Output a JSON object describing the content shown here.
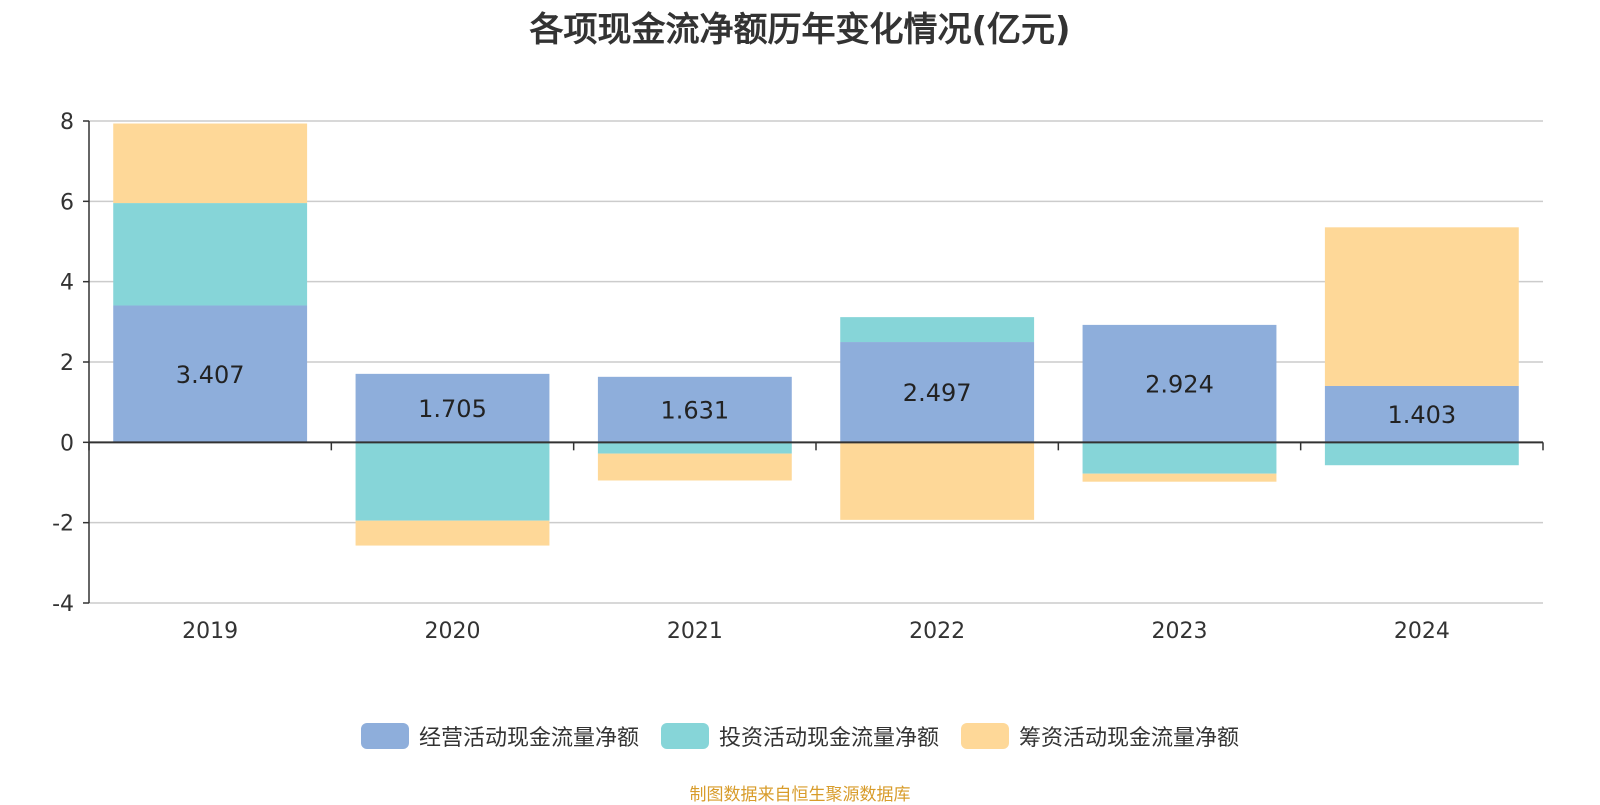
{
  "chart_data": {
    "type": "bar",
    "stacked": true,
    "title": "各项现金流净额历年变化情况(亿元)",
    "categories": [
      "2019",
      "2020",
      "2021",
      "2022",
      "2023",
      "2024"
    ],
    "ylim": [
      -4,
      8
    ],
    "yticks": [
      -4,
      -2,
      0,
      2,
      4,
      6,
      8
    ],
    "grid": true,
    "legend_position": "bottom",
    "series": [
      {
        "name": "经营活动现金流量净额",
        "color": "#8eaedb",
        "values": [
          3.407,
          1.705,
          1.631,
          2.497,
          2.924,
          1.403
        ],
        "labels": [
          "3.407",
          "1.705",
          "1.631",
          "2.497",
          "2.924",
          "1.403"
        ]
      },
      {
        "name": "投资活动现金流量净额",
        "color": "#86d5d8",
        "values": [
          2.55,
          -1.95,
          -0.28,
          0.62,
          -0.78,
          -0.57
        ]
      },
      {
        "name": "筹资活动现金流量净额",
        "color": "#fed898",
        "values": [
          1.98,
          -0.62,
          -0.67,
          -1.93,
          -0.2,
          3.95
        ]
      }
    ]
  },
  "source": "制图数据来自恒生聚源数据库"
}
